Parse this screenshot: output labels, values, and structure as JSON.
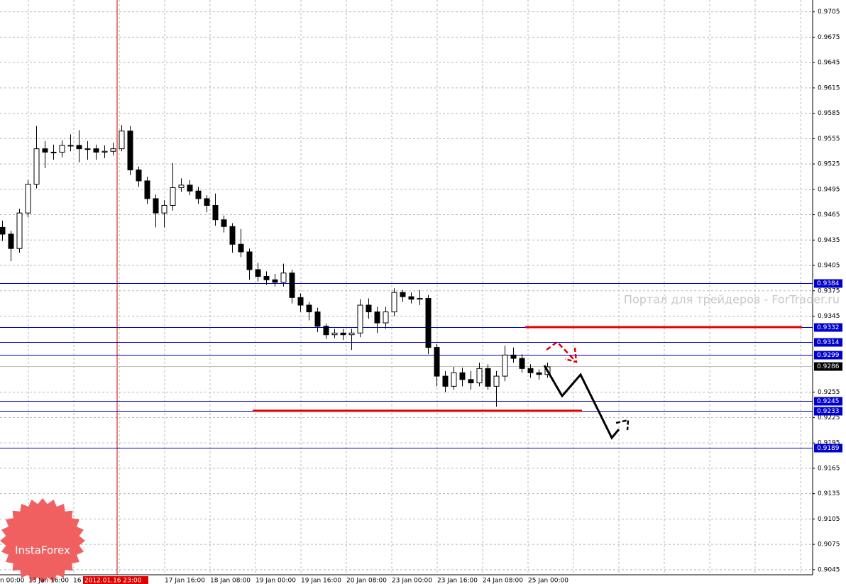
{
  "chart_data": {
    "type": "candlestick",
    "ylim": [
      0.9039,
      0.9719
    ],
    "yticks": [
      0.9705,
      0.9675,
      0.9645,
      0.9615,
      0.9585,
      0.9555,
      0.9525,
      0.9495,
      0.9465,
      0.9435,
      0.9405,
      0.9375,
      0.9345,
      0.9255,
      0.9225,
      0.9195,
      0.9165,
      0.9135,
      0.9105,
      0.9075,
      0.9045
    ],
    "x_labels": [
      "n 00:00",
      "13 Jan 16:00",
      "16",
      "2012.01.16 23:00",
      "17 Jan 16:00",
      "18 Jan 08:00",
      "19 Jan 00:00",
      "19 Jan 16:00",
      "20 Jan 08:00",
      "23 Jan 00:00",
      "23 Jan 16:00",
      "24 Jan 08:00",
      "25 Jan 00:00"
    ],
    "open": [
      0.945,
      0.9442,
      0.9425,
      0.9467,
      0.9501,
      0.9543,
      0.9539,
      0.9539,
      0.9547,
      0.9547,
      0.9543,
      0.9543,
      0.9539,
      0.954,
      0.9543,
      0.9564,
      0.9518,
      0.9505,
      0.9484,
      0.9467,
      0.9476,
      0.9497,
      0.95,
      0.9493,
      0.9484,
      0.9476,
      0.9459,
      0.9451,
      0.943,
      0.9421,
      0.94,
      0.9392,
      0.9388,
      0.9385,
      0.9396,
      0.9367,
      0.9358,
      0.935,
      0.9333,
      0.9323,
      0.9325,
      0.9323,
      0.9325,
      0.9358,
      0.935,
      0.9337,
      0.935,
      0.9373,
      0.9368,
      0.9365,
      0.9366,
      0.9308,
      0.9274,
      0.9262,
      0.9278,
      0.927,
      0.9266,
      0.9283,
      0.9262,
      0.9274,
      0.9299,
      0.9295,
      0.9283,
      0.9278,
      0.9276
    ],
    "high": [
      0.9458,
      0.9446,
      0.9472,
      0.9506,
      0.957,
      0.9552,
      0.9548,
      0.9553,
      0.956,
      0.9565,
      0.9552,
      0.9548,
      0.9547,
      0.955,
      0.9571,
      0.957,
      0.9522,
      0.951,
      0.9489,
      0.9482,
      0.9526,
      0.9508,
      0.9506,
      0.9498,
      0.9488,
      0.949,
      0.9464,
      0.9455,
      0.9448,
      0.9425,
      0.9408,
      0.9398,
      0.9395,
      0.9407,
      0.94,
      0.9372,
      0.9362,
      0.9355,
      0.9336,
      0.933,
      0.933,
      0.933,
      0.9365,
      0.9366,
      0.9356,
      0.9356,
      0.9378,
      0.9376,
      0.9373,
      0.9376,
      0.937,
      0.9312,
      0.928,
      0.9285,
      0.9284,
      0.928,
      0.929,
      0.9288,
      0.928,
      0.931,
      0.9308,
      0.93,
      0.9288,
      0.9282,
      0.929
    ],
    "low": [
      0.9434,
      0.941,
      0.942,
      0.9462,
      0.9496,
      0.952,
      0.953,
      0.9533,
      0.954,
      0.9527,
      0.953,
      0.953,
      0.9532,
      0.9535,
      0.954,
      0.9512,
      0.9498,
      0.9478,
      0.945,
      0.945,
      0.947,
      0.9492,
      0.9488,
      0.9478,
      0.9468,
      0.9452,
      0.9444,
      0.942,
      0.9415,
      0.9388,
      0.9386,
      0.9382,
      0.938,
      0.938,
      0.936,
      0.935,
      0.934,
      0.9326,
      0.9318,
      0.9319,
      0.9317,
      0.9305,
      0.932,
      0.9342,
      0.9325,
      0.933,
      0.9345,
      0.9362,
      0.936,
      0.9358,
      0.93,
      0.9262,
      0.9255,
      0.9258,
      0.9262,
      0.9258,
      0.9262,
      0.9258,
      0.9238,
      0.9268,
      0.929,
      0.9278,
      0.9272,
      0.927,
      0.9272
    ],
    "close": [
      0.9442,
      0.9425,
      0.9467,
      0.9501,
      0.9543,
      0.9539,
      0.9539,
      0.9547,
      0.9547,
      0.9543,
      0.9543,
      0.9539,
      0.954,
      0.9543,
      0.9564,
      0.9518,
      0.9505,
      0.9484,
      0.9467,
      0.9476,
      0.9497,
      0.95,
      0.9493,
      0.9484,
      0.9476,
      0.9459,
      0.9451,
      0.943,
      0.9421,
      0.94,
      0.9392,
      0.9388,
      0.9385,
      0.9396,
      0.9367,
      0.9358,
      0.935,
      0.9333,
      0.9323,
      0.9325,
      0.9323,
      0.9325,
      0.9358,
      0.935,
      0.9337,
      0.935,
      0.9373,
      0.9368,
      0.9365,
      0.9366,
      0.9308,
      0.9274,
      0.9262,
      0.9278,
      0.927,
      0.9266,
      0.9283,
      0.9262,
      0.9274,
      0.9299,
      0.9295,
      0.9283,
      0.9278,
      0.9276,
      0.9285
    ],
    "price_lines": [
      0.9384,
      0.9332,
      0.9314,
      0.9299,
      0.9245,
      0.9233,
      0.9189
    ],
    "current_price": 0.9286,
    "red_levels": [
      0.9332,
      0.9233
    ],
    "watermark": "Портал для трейдеров - ForTrader.ru",
    "logo": "InstaForex"
  }
}
